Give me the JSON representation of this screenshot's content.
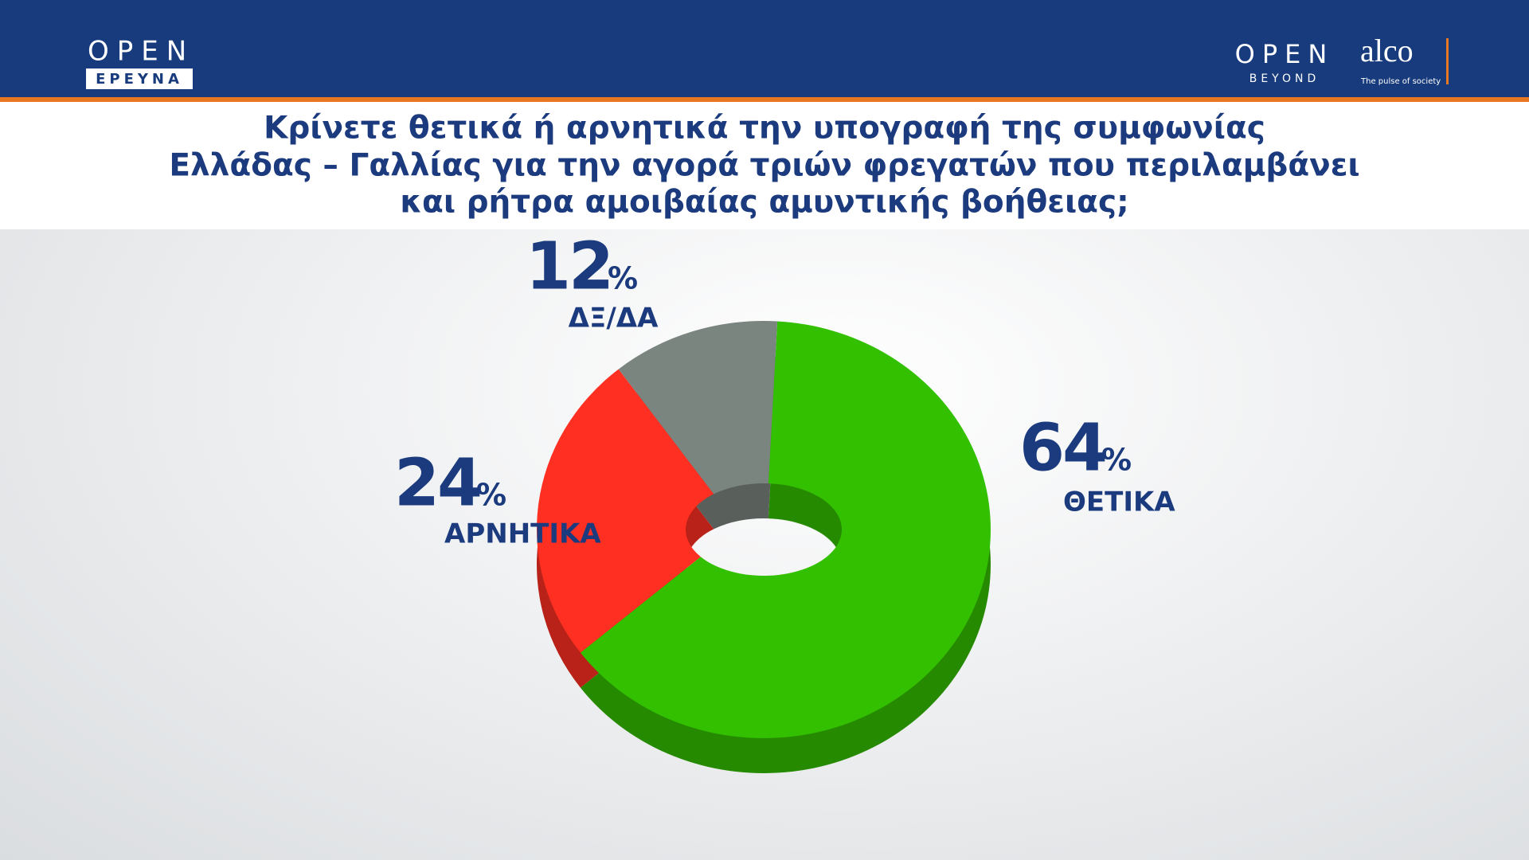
{
  "header": {
    "left_logo": "OPEN",
    "left_logo_sub": "ΕΡΕΥΝΑ",
    "right_logo": "OPEN",
    "right_logo_sub": "BEYOND",
    "partner_logo": "alco",
    "partner_tagline": "The pulse of society"
  },
  "chart_data": {
    "type": "donut",
    "title": [
      "Κρίνετε θετικά ή αρνητικά την υπογραφή της συμφωνίας",
      "Ελλάδας – Γαλλίας για την αγορά τριών φρεγατών που περιλαμβάνει",
      "και ρήτρα αμοιβαίας αμυντικής βοήθειας;"
    ],
    "categories": [
      "ΘΕΤΙΚΑ",
      "ΑΡΝΗΤΙΚΑ",
      "ΔΞ/ΔΑ"
    ],
    "values": [
      64,
      24,
      12
    ],
    "unit": "%",
    "colors": [
      "#33c000",
      "#ff2f22",
      "#7b8580"
    ]
  }
}
